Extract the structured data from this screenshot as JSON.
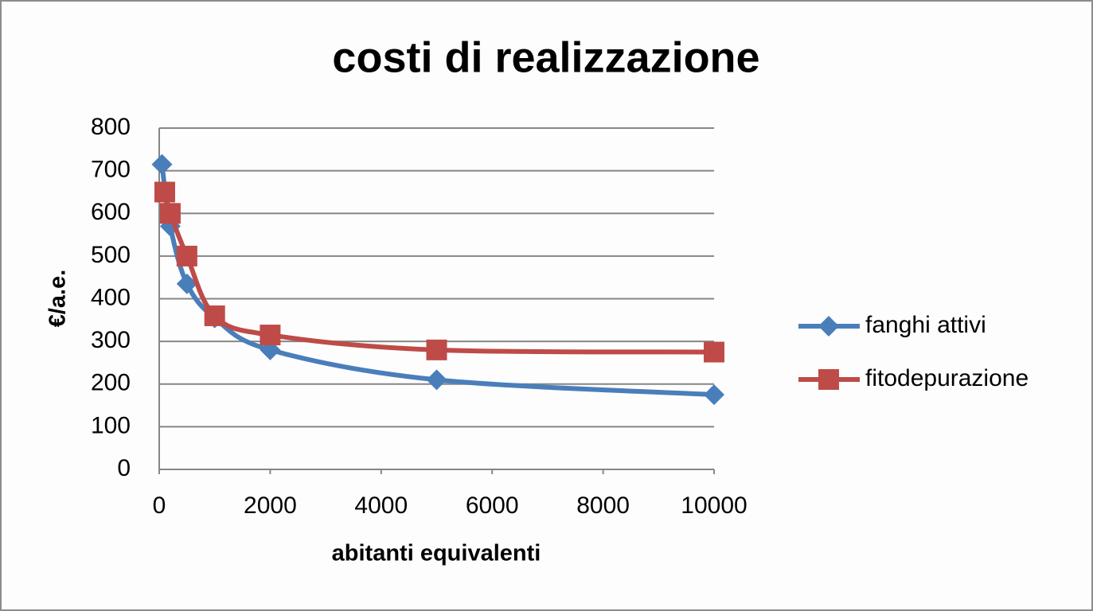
{
  "chart_data": {
    "type": "scatter-line",
    "title": "costi di realizzazione",
    "x_label": "abitanti equivalenti",
    "y_label": "€/a.e.",
    "xlim": [
      0,
      10000
    ],
    "xticks": [
      0,
      2000,
      4000,
      6000,
      8000,
      10000
    ],
    "ylim": [
      0,
      800
    ],
    "yticks": [
      0,
      100,
      200,
      300,
      400,
      500,
      600,
      700,
      800
    ],
    "grid": true,
    "legend": "right",
    "smooth": true,
    "series": [
      {
        "name": "fanghi attivi",
        "color": "#4a7ebb",
        "marker": "diamond",
        "x": [
          50,
          200,
          500,
          1000,
          2000,
          5000,
          10000
        ],
        "values": [
          715,
          570,
          435,
          355,
          280,
          210,
          175
        ]
      },
      {
        "name": "fitodepurazione",
        "color": "#be4b48",
        "marker": "square",
        "x": [
          100,
          200,
          500,
          1000,
          2000,
          5000,
          10000
        ],
        "values": [
          650,
          600,
          500,
          360,
          315,
          280,
          275
        ]
      }
    ]
  }
}
